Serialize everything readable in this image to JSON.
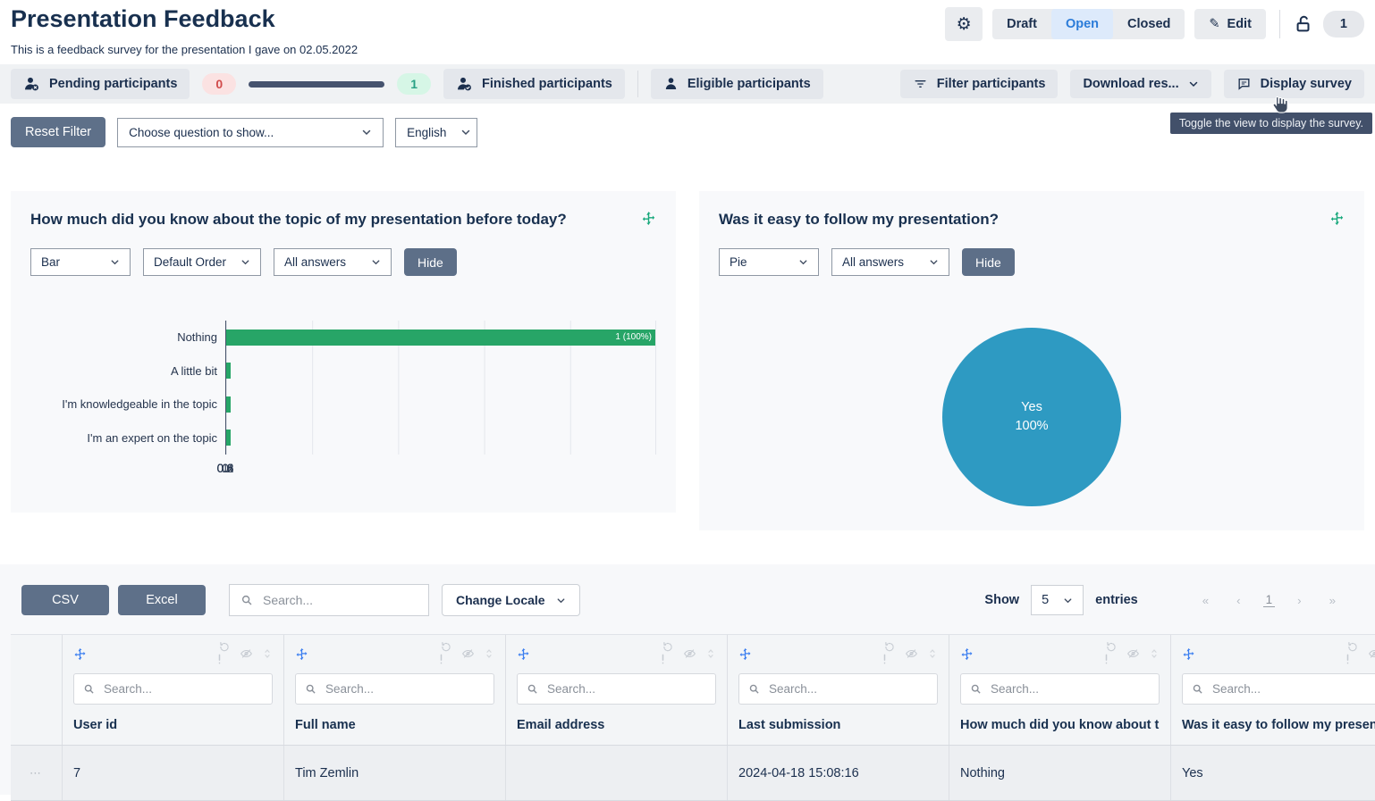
{
  "colors": {
    "accent_blue": "#2b7cd9",
    "navy_text": "#1b2f4e",
    "bar_green": "#27a567",
    "pie_blue": "#2e9ac2",
    "slate_button": "#5e7089",
    "pill_red_bg": "#fbe2e2",
    "pill_red_text": "#d14b4b",
    "pill_green_bg": "#d6f6e6",
    "pill_green_text": "#28a184",
    "progress_bar": "#46536e",
    "tooltip_bg": "#42506a"
  },
  "header": {
    "title": "Presentation Feedback",
    "subtitle": "This is a feedback survey for the presentation I gave on 02.05.2022",
    "status_tabs": {
      "draft": "Draft",
      "open": "Open",
      "closed": "Closed",
      "active": "Open"
    },
    "edit_label": "Edit",
    "count_badge": "1"
  },
  "participants_bar": {
    "pending_label": "Pending participants",
    "pending_count": "0",
    "finished_count": "1",
    "finished_label": "Finished participants",
    "eligible_label": "Eligible participants",
    "filter_label": "Filter participants",
    "download_label": "Download res...",
    "display_label": "Display survey",
    "tooltip": "Toggle the view to display the survey."
  },
  "filter_row": {
    "reset_label": "Reset Filter",
    "question_select": "Choose question to show...",
    "language_select": "English"
  },
  "chart_data": [
    {
      "type": "bar",
      "orientation": "horizontal",
      "title": "How much did you know about the topic of my presentation before today?",
      "categories": [
        "Nothing",
        "A little bit",
        "I'm knowledgeable in the topic",
        "I'm an expert on the topic"
      ],
      "values": [
        1,
        0,
        0,
        0
      ],
      "bar_labels": [
        "1 (100%)",
        "",
        "",
        ""
      ],
      "xlim": [
        0,
        1
      ],
      "x_ticks": [
        "0",
        "0.2",
        "0.4",
        "0.6",
        "0.8",
        "1"
      ],
      "grid": true,
      "legend": "none",
      "bar_color": "#27a567",
      "controls": {
        "chart_type": "Bar",
        "order": "Default Order",
        "answers": "All answers",
        "hide_label": "Hide"
      }
    },
    {
      "type": "pie",
      "title": "Was it easy to follow my presentation?",
      "labels": [
        "Yes"
      ],
      "values": [
        100
      ],
      "center_text": {
        "line1": "Yes",
        "line2": "100%"
      },
      "slice_colors": [
        "#2e9ac2"
      ],
      "controls": {
        "chart_type": "Pie",
        "answers": "All answers",
        "hide_label": "Hide"
      }
    }
  ],
  "table": {
    "csv_label": "CSV",
    "excel_label": "Excel",
    "search_placeholder": "Search...",
    "locale_label": "Change Locale",
    "show_label": "Show",
    "page_size": "5",
    "entries_label": "entries",
    "pagination": {
      "first": "«",
      "prev": "‹",
      "page": "1",
      "next": "›",
      "last": "»"
    },
    "row_actions": "⋯",
    "columns": [
      {
        "title": "User id"
      },
      {
        "title": "Full name"
      },
      {
        "title": "Email address"
      },
      {
        "title": "Last submission"
      },
      {
        "title": "How much did you know about the topic of my presentation before today?"
      },
      {
        "title": "Was it easy to follow my presentation?"
      }
    ],
    "rows": [
      {
        "cells": [
          "7",
          "Tim Zemlin",
          "",
          "2024-04-18 15:08:16",
          "Nothing",
          "Yes"
        ]
      }
    ]
  }
}
